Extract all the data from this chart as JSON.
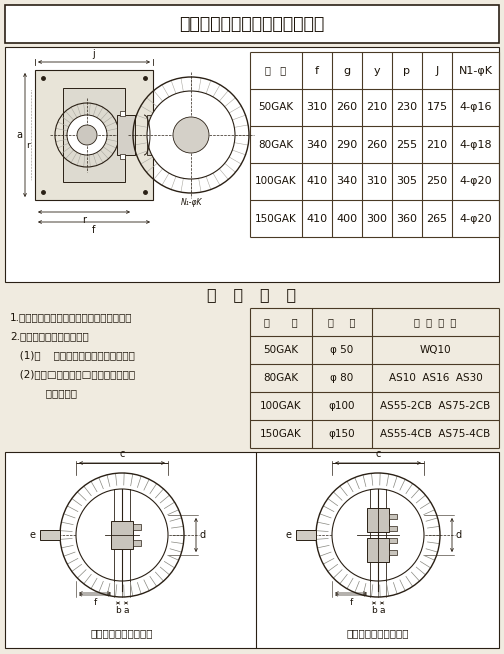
{
  "title": "十一、自稱底座螺栓预埋尺寸表",
  "bg_color": "#f0ebe0",
  "white": "#ffffff",
  "table1_headers": [
    "型   号",
    "f",
    "g",
    "y",
    "p",
    "J",
    "N1-φK"
  ],
  "table1_rows": [
    [
      "50GAK",
      "310",
      "260",
      "210",
      "230",
      "175",
      "4-φ16"
    ],
    [
      "80GAK",
      "340",
      "290",
      "260",
      "255",
      "210",
      "4-φ18"
    ],
    [
      "100GAK",
      "410",
      "340",
      "310",
      "305",
      "250",
      "4-φ20"
    ],
    [
      "150GAK",
      "410",
      "400",
      "300",
      "360",
      "265",
      "4-φ20"
    ]
  ],
  "section_title": "选   用   说   明",
  "instructions": [
    "1.根据排污泵的出口直径，确定选用型号。",
    "2.订货必须提供下列尺寸。",
    "   (1)池    深：池的下底至上底的高度。",
    "   (2)出水□高：出水□中心线至池的下",
    "           底的高度。"
  ],
  "table2_headers": [
    "型       号",
    "管     径",
    "适  用  产  品"
  ],
  "table2_rows": [
    [
      "50GAK",
      "φ 50",
      "WQ10"
    ],
    [
      "80GAK",
      "φ 80",
      "AS10  AS16  AS30"
    ],
    [
      "100GAK",
      "φ100",
      "AS55-2CB  AS75-2CB"
    ],
    [
      "150GAK",
      "φ150",
      "AS55-4CB  AS75-4CB"
    ]
  ],
  "diagram1_label": "双导轨单泵排水平面图",
  "diagram2_label": "双导轨双泵排水平面图",
  "text_color": "#1a1208",
  "line_color": "#2a2015",
  "table_line_color": "#4a3a25"
}
